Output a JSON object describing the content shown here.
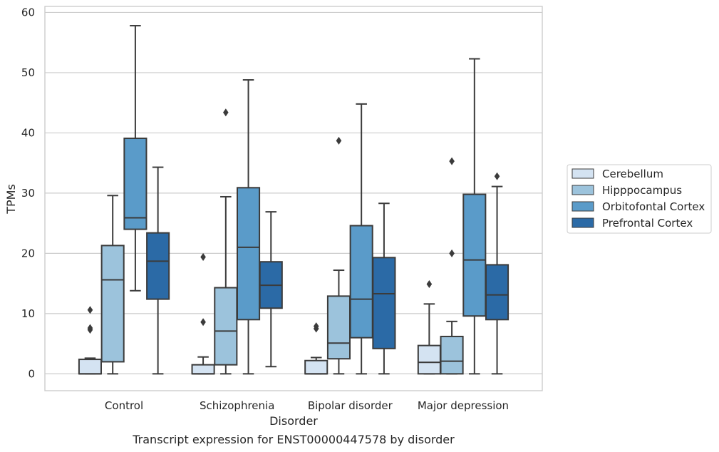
{
  "chart_data": {
    "type": "boxplot",
    "title": "Transcript expression for ENST00000447578 by disorder",
    "xlabel": "Disorder",
    "ylabel": "TPMs",
    "ylim": [
      -2.8,
      61
    ],
    "yticks": [
      0,
      10,
      20,
      30,
      40,
      50,
      60
    ],
    "grid": "horizontal",
    "legend_position": "right",
    "categories": [
      "Control",
      "Schizophrenia",
      "Bipolar disorder",
      "Major depression"
    ],
    "series": [
      {
        "name": "Cerebellum",
        "color": "#d4e3f2",
        "boxes": [
          {
            "whislo": 0,
            "q1": 0,
            "med": 0,
            "q3": 2.4,
            "whishi": 2.6,
            "fliers": [
              7.3,
              7.6,
              10.6
            ]
          },
          {
            "whislo": 0,
            "q1": 0,
            "med": 0,
            "q3": 1.5,
            "whishi": 2.8,
            "fliers": [
              8.6,
              19.4
            ]
          },
          {
            "whislo": 0,
            "q1": 0,
            "med": 0,
            "q3": 2.2,
            "whishi": 2.7,
            "fliers": [
              7.5,
              7.9
            ]
          },
          {
            "whislo": 0,
            "q1": 0,
            "med": 1.9,
            "q3": 4.7,
            "whishi": 11.6,
            "fliers": [
              14.9
            ]
          }
        ]
      },
      {
        "name": "Hipppocampus",
        "color": "#9cc3dc",
        "boxes": [
          {
            "whislo": 0,
            "q1": 2.0,
            "med": 15.6,
            "q3": 21.3,
            "whishi": 29.6,
            "fliers": []
          },
          {
            "whislo": 0,
            "q1": 1.5,
            "med": 7.1,
            "q3": 14.3,
            "whishi": 29.4,
            "fliers": [
              43.4
            ]
          },
          {
            "whislo": 0,
            "q1": 2.5,
            "med": 5.1,
            "q3": 12.9,
            "whishi": 17.2,
            "fliers": [
              38.7
            ]
          },
          {
            "whislo": 0,
            "q1": 0,
            "med": 2.1,
            "q3": 6.2,
            "whishi": 8.7,
            "fliers": [
              20.0,
              35.3
            ]
          }
        ]
      },
      {
        "name": "Orbitofontal Cortex",
        "color": "#5a9bc9",
        "boxes": [
          {
            "whislo": 13.8,
            "q1": 24.0,
            "med": 25.9,
            "q3": 39.1,
            "whishi": 57.8,
            "fliers": []
          },
          {
            "whislo": 0,
            "q1": 9.0,
            "med": 21.0,
            "q3": 30.9,
            "whishi": 48.8,
            "fliers": []
          },
          {
            "whislo": 0,
            "q1": 6.0,
            "med": 12.4,
            "q3": 24.6,
            "whishi": 44.8,
            "fliers": []
          },
          {
            "whislo": 0,
            "q1": 9.6,
            "med": 18.9,
            "q3": 29.8,
            "whishi": 52.3,
            "fliers": []
          }
        ]
      },
      {
        "name": "Prefrontal Cortex",
        "color": "#2b6aa6",
        "boxes": [
          {
            "whislo": 0,
            "q1": 12.4,
            "med": 18.7,
            "q3": 23.4,
            "whishi": 34.3,
            "fliers": []
          },
          {
            "whislo": 1.2,
            "q1": 10.9,
            "med": 14.7,
            "q3": 18.6,
            "whishi": 26.9,
            "fliers": []
          },
          {
            "whislo": 0,
            "q1": 4.2,
            "med": 13.3,
            "q3": 19.3,
            "whishi": 28.3,
            "fliers": []
          },
          {
            "whislo": 0,
            "q1": 9.0,
            "med": 13.1,
            "q3": 18.1,
            "whishi": 31.1,
            "fliers": [
              32.8
            ]
          }
        ]
      }
    ]
  }
}
